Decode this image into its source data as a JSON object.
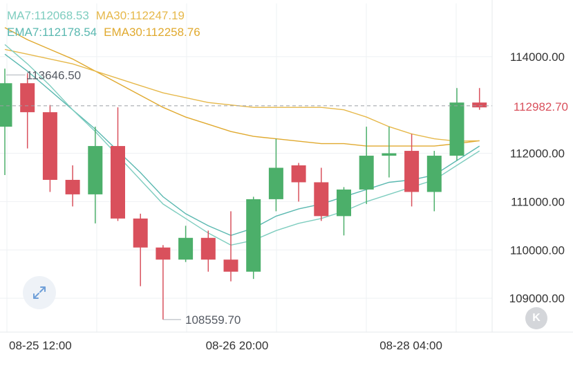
{
  "legend": {
    "ma7_label": "MA7:112068.53",
    "ma30_label": "MA30:112247.19",
    "ema7_label": "EMA7:112178.54",
    "ema30_label": "EMA30:112258.76"
  },
  "colors": {
    "up": "#4caf6a",
    "down": "#d9505c",
    "ma7": "#7ecdbf",
    "ema7": "#5ab8b0",
    "ma30": "#e6b84a",
    "ema30": "#e0a92e",
    "grid": "#eef0f3",
    "axis_text": "#333333",
    "last_price": "#d9505c"
  },
  "icons": {
    "expand": "expand-arrows-icon",
    "kline": "k-letter-icon"
  },
  "k_button_label": "K",
  "chart_data": {
    "type": "candlestick",
    "y_ticks": [
      "114000.00",
      "112000.00",
      "111000.00",
      "110000.00",
      "109000.00"
    ],
    "y_tick_values": [
      114000,
      112000,
      111000,
      110000,
      109000
    ],
    "x_ticks": [
      "08-25 12:00",
      "08-26 20:00",
      "08-28 04:00"
    ],
    "ylim": [
      108300,
      115100
    ],
    "last_price": 112982.7,
    "last_price_label": "112982.70",
    "high_label": "113646.50",
    "low_label": "108559.70",
    "grid": true,
    "candles": [
      {
        "open": 112550,
        "close": 113450,
        "high": 113750,
        "low": 111550
      },
      {
        "open": 113450,
        "close": 112850,
        "high": 113650,
        "low": 112100
      },
      {
        "open": 112850,
        "close": 111450,
        "high": 113000,
        "low": 111200
      },
      {
        "open": 111450,
        "close": 111150,
        "high": 111750,
        "low": 110900
      },
      {
        "open": 111150,
        "close": 112150,
        "high": 112550,
        "low": 110550
      },
      {
        "open": 112150,
        "close": 110650,
        "high": 112950,
        "low": 110600
      },
      {
        "open": 110650,
        "close": 110050,
        "high": 110750,
        "low": 109250
      },
      {
        "open": 110050,
        "close": 109800,
        "high": 110100,
        "low": 108560
      },
      {
        "open": 109800,
        "close": 110250,
        "high": 110500,
        "low": 109750
      },
      {
        "open": 110250,
        "close": 109800,
        "high": 110400,
        "low": 109550
      },
      {
        "open": 109800,
        "close": 109550,
        "high": 110800,
        "low": 109350
      },
      {
        "open": 109550,
        "close": 111050,
        "high": 111100,
        "low": 109400
      },
      {
        "open": 111050,
        "close": 111700,
        "high": 112300,
        "low": 110800
      },
      {
        "open": 111750,
        "close": 111400,
        "high": 111800,
        "low": 111000
      },
      {
        "open": 111400,
        "close": 110700,
        "high": 111700,
        "low": 110600
      },
      {
        "open": 110700,
        "close": 111250,
        "high": 111300,
        "low": 110300
      },
      {
        "open": 111250,
        "close": 111950,
        "high": 112550,
        "low": 110950
      },
      {
        "open": 111950,
        "close": 112000,
        "high": 112550,
        "low": 111500
      },
      {
        "open": 112050,
        "close": 111200,
        "high": 112400,
        "low": 110900
      },
      {
        "open": 111200,
        "close": 111950,
        "high": 112050,
        "low": 110800
      },
      {
        "open": 111950,
        "close": 113050,
        "high": 113350,
        "low": 111850
      },
      {
        "open": 113050,
        "close": 112950,
        "high": 113350,
        "low": 112900
      }
    ],
    "ma7": [
      114250,
      113850,
      113400,
      112900,
      112450,
      111950,
      111450,
      110950,
      110650,
      110350,
      110100,
      110200,
      110400,
      110550,
      110650,
      110800,
      111000,
      111150,
      111300,
      111450,
      111750,
      112050
    ],
    "ema7": [
      114050,
      113700,
      113300,
      112900,
      112500,
      112050,
      111600,
      111100,
      110750,
      110500,
      110300,
      110450,
      110700,
      110850,
      110950,
      111100,
      111250,
      111400,
      111450,
      111550,
      111850,
      112150
    ],
    "ma30": [
      114150,
      114050,
      113950,
      113850,
      113700,
      113550,
      113400,
      113250,
      113150,
      113050,
      113000,
      112950,
      112950,
      112950,
      112950,
      112900,
      112750,
      112550,
      112400,
      112300,
      112250,
      112260
    ],
    "ema30": [
      114600,
      114350,
      114150,
      113950,
      113700,
      113450,
      113200,
      112950,
      112750,
      112600,
      112450,
      112350,
      112300,
      112250,
      112200,
      112200,
      112150,
      112150,
      112150,
      112150,
      112200,
      112260
    ]
  }
}
